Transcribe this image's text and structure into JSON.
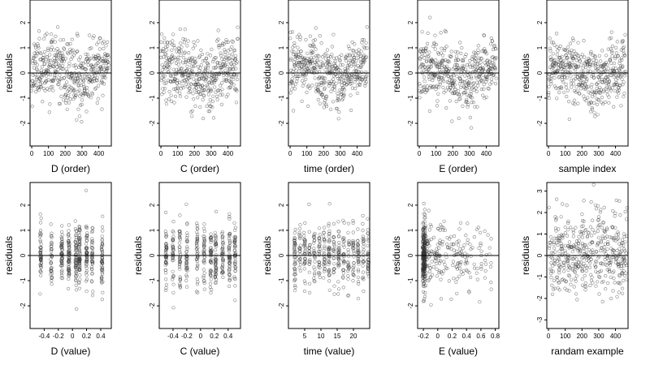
{
  "chart_data": [
    {
      "type": "scatter",
      "xlabel": "D (order)",
      "ylabel": "residuals",
      "xlim": [
        -10,
        475
      ],
      "ylim": [
        -2.9,
        2.9
      ],
      "xticks": [
        0,
        100,
        200,
        300,
        400
      ],
      "yticks": [
        -2,
        -1,
        0,
        1,
        2
      ],
      "hline": 0,
      "pattern": "order",
      "n": 450,
      "seed": 11
    },
    {
      "type": "scatter",
      "xlabel": "C (order)",
      "ylabel": "residuals",
      "xlim": [
        -10,
        475
      ],
      "ylim": [
        -2.9,
        2.9
      ],
      "xticks": [
        0,
        100,
        200,
        300,
        400
      ],
      "yticks": [
        -2,
        -1,
        0,
        1,
        2
      ],
      "hline": 0,
      "pattern": "order",
      "n": 450,
      "seed": 12
    },
    {
      "type": "scatter",
      "xlabel": "time (order)",
      "ylabel": "residuals",
      "xlim": [
        -10,
        475
      ],
      "ylim": [
        -2.9,
        2.9
      ],
      "xticks": [
        0,
        100,
        200,
        300,
        400
      ],
      "yticks": [
        -2,
        -1,
        0,
        1,
        2
      ],
      "hline": 0,
      "pattern": "order",
      "n": 450,
      "seed": 13
    },
    {
      "type": "scatter",
      "xlabel": "E (order)",
      "ylabel": "residuals",
      "xlim": [
        -10,
        475
      ],
      "ylim": [
        -2.9,
        2.9
      ],
      "xticks": [
        0,
        100,
        200,
        300,
        400
      ],
      "yticks": [
        -2,
        -1,
        0,
        1,
        2
      ],
      "hline": 0,
      "pattern": "order",
      "n": 450,
      "seed": 14
    },
    {
      "type": "scatter",
      "xlabel": "sample index",
      "ylabel": "residuals",
      "xlim": [
        -10,
        475
      ],
      "ylim": [
        -2.9,
        2.9
      ],
      "xticks": [
        0,
        100,
        200,
        300,
        400
      ],
      "yticks": [
        -2,
        -1,
        0,
        1,
        2
      ],
      "hline": 0,
      "pattern": "order",
      "n": 450,
      "seed": 15
    },
    {
      "type": "scatter",
      "xlabel": "D (value)",
      "ylabel": "residuals",
      "xlim": [
        -0.6,
        0.55
      ],
      "ylim": [
        -2.9,
        2.9
      ],
      "xticks": [
        -0.4,
        -0.2,
        0.0,
        0.2,
        0.4
      ],
      "yticks": [
        -2,
        -1,
        0,
        1,
        2
      ],
      "hline": 0,
      "pattern": "bands",
      "bands": [
        -0.45,
        -0.3,
        -0.15,
        -0.05,
        0.05,
        0.1,
        0.2,
        0.28,
        0.42
      ],
      "n": 450,
      "seed": 21
    },
    {
      "type": "scatter",
      "xlabel": "C (value)",
      "ylabel": "residuals",
      "xlim": [
        -0.6,
        0.58
      ],
      "ylim": [
        -2.9,
        2.9
      ],
      "xticks": [
        -0.4,
        -0.2,
        0.0,
        0.2,
        0.4
      ],
      "yticks": [
        -2,
        -1,
        0,
        1,
        2
      ],
      "hline": 0,
      "pattern": "bands",
      "bands": [
        -0.5,
        -0.4,
        -0.3,
        -0.2,
        -0.05,
        0.05,
        0.15,
        0.22,
        0.32,
        0.42,
        0.5
      ],
      "n": 450,
      "seed": 22
    },
    {
      "type": "scatter",
      "xlabel": "time (value)",
      "ylabel": "residuals",
      "xlim": [
        0,
        25
      ],
      "ylim": [
        -2.9,
        2.9
      ],
      "xticks": [
        5,
        10,
        15,
        20
      ],
      "yticks": [
        -2,
        -1,
        0,
        1,
        2
      ],
      "hline": 0,
      "pattern": "bands",
      "bands": [
        2,
        3.5,
        5,
        6.5,
        8,
        9.5,
        11,
        12.5,
        14,
        15.5,
        17,
        18.5,
        20,
        21.5,
        23,
        24.5
      ],
      "n": 450,
      "seed": 23
    },
    {
      "type": "scatter",
      "xlabel": "E (value)",
      "ylabel": "residuals",
      "xlim": [
        -0.28,
        0.85
      ],
      "ylim": [
        -2.9,
        2.9
      ],
      "xticks": [
        -0.2,
        0.0,
        0.2,
        0.4,
        0.6,
        0.8
      ],
      "yticks": [
        -2,
        -1,
        0,
        1,
        2
      ],
      "hline": 0,
      "pattern": "skewed",
      "n": 450,
      "seed": 24
    },
    {
      "type": "scatter",
      "xlabel": "randam example",
      "ylabel": "residuals",
      "xlim": [
        -10,
        475
      ],
      "ylim": [
        -3.4,
        3.4
      ],
      "xticks": [
        0,
        100,
        200,
        300,
        400
      ],
      "yticks": [
        -3,
        -2,
        -1,
        0,
        1,
        2,
        3
      ],
      "hline": 0,
      "pattern": "uniform",
      "n": 450,
      "seed": 25
    }
  ]
}
